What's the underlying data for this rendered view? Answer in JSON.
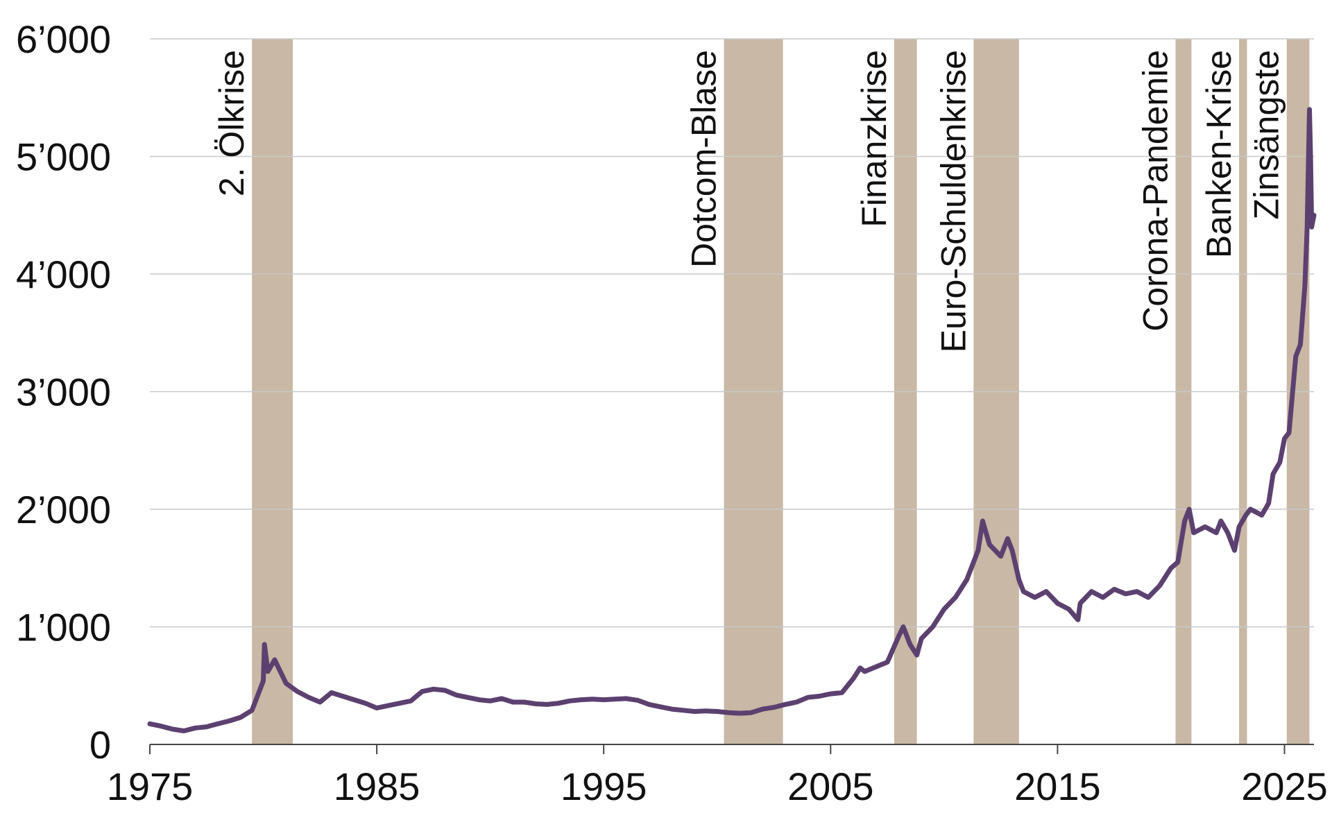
{
  "chart_data": {
    "type": "line",
    "title": "",
    "xlabel": "",
    "ylabel": "",
    "xlim": [
      1975,
      2026.3
    ],
    "ylim": [
      0,
      6000
    ],
    "grid": true,
    "y_ticks": [
      {
        "value": 0,
        "label": "0"
      },
      {
        "value": 1000,
        "label": "1’000"
      },
      {
        "value": 2000,
        "label": "2’000"
      },
      {
        "value": 3000,
        "label": "3’000"
      },
      {
        "value": 4000,
        "label": "4’000"
      },
      {
        "value": 5000,
        "label": "5’000"
      },
      {
        "value": 6000,
        "label": "6’000"
      }
    ],
    "x_ticks": [
      {
        "value": 1975,
        "label": "1975"
      },
      {
        "value": 1985,
        "label": "1985"
      },
      {
        "value": 1995,
        "label": "1995"
      },
      {
        "value": 2005,
        "label": "2005"
      },
      {
        "value": 2015,
        "label": "2015"
      },
      {
        "value": 2025,
        "label": "2025"
      }
    ],
    "colors": {
      "series": "#5c4170",
      "band": "#c8b8a5",
      "grid": "#c8c8c8",
      "axis": "#444444"
    },
    "crisis_bands": [
      {
        "label": "2. Ölkrise",
        "start": 1979.5,
        "end": 1981.3
      },
      {
        "label": "Dotcom-Blase",
        "start": 2000.3,
        "end": 2002.9
      },
      {
        "label": "Finanzkrise",
        "start": 2007.8,
        "end": 2008.8
      },
      {
        "label": "Euro-Schuldenkrise",
        "start": 2011.3,
        "end": 2013.3
      },
      {
        "label": "Corona-Pandemie",
        "start": 2020.2,
        "end": 2020.9
      },
      {
        "label": "Banken-Krise",
        "start": 2023.0,
        "end": 2023.35
      },
      {
        "label": "Zinsängste",
        "start": 2025.1,
        "end": 2026.1
      }
    ],
    "series": [
      {
        "x": [
          1975.0,
          1975.5,
          1976.0,
          1976.5,
          1977.0,
          1977.5,
          1978.0,
          1978.5,
          1979.0,
          1979.5,
          1980.0,
          1980.05,
          1980.2,
          1980.5,
          1980.7,
          1981.0,
          1981.5,
          1982.0,
          1982.5,
          1983.0,
          1983.5,
          1984.0,
          1984.5,
          1985.0,
          1985.5,
          1986.0,
          1986.5,
          1987.0,
          1987.5,
          1988.0,
          1988.5,
          1989.0,
          1989.5,
          1990.0,
          1990.5,
          1991.0,
          1991.5,
          1992.0,
          1992.5,
          1993.0,
          1993.5,
          1994.0,
          1994.5,
          1995.0,
          1995.5,
          1996.0,
          1996.5,
          1997.0,
          1997.5,
          1998.0,
          1998.5,
          1999.0,
          1999.5,
          2000.0,
          2000.5,
          2001.0,
          2001.5,
          2002.0,
          2002.5,
          2003.0,
          2003.5,
          2004.0,
          2004.5,
          2005.0,
          2005.5,
          2006.0,
          2006.3,
          2006.5,
          2007.0,
          2007.5,
          2008.0,
          2008.2,
          2008.5,
          2008.8,
          2009.0,
          2009.5,
          2010.0,
          2010.5,
          2011.0,
          2011.5,
          2011.7,
          2012.0,
          2012.5,
          2012.8,
          2013.0,
          2013.3,
          2013.5,
          2014.0,
          2014.5,
          2015.0,
          2015.5,
          2015.9,
          2016.0,
          2016.5,
          2017.0,
          2017.5,
          2018.0,
          2018.5,
          2019.0,
          2019.5,
          2020.0,
          2020.3,
          2020.6,
          2020.8,
          2021.0,
          2021.5,
          2022.0,
          2022.2,
          2022.5,
          2022.8,
          2023.0,
          2023.3,
          2023.5,
          2024.0,
          2024.3,
          2024.5,
          2024.8,
          2025.0,
          2025.2,
          2025.5,
          2025.7,
          2025.9,
          2026.0,
          2026.1,
          2026.15,
          2026.2,
          2026.3
        ],
        "y": [
          175,
          155,
          130,
          115,
          140,
          150,
          175,
          200,
          230,
          290,
          540,
          850,
          620,
          720,
          640,
          520,
          450,
          400,
          360,
          440,
          410,
          380,
          350,
          310,
          330,
          350,
          370,
          450,
          470,
          460,
          420,
          400,
          380,
          370,
          390,
          360,
          360,
          345,
          340,
          350,
          370,
          380,
          385,
          380,
          385,
          390,
          375,
          340,
          320,
          300,
          290,
          280,
          285,
          280,
          270,
          265,
          270,
          300,
          315,
          340,
          360,
          400,
          410,
          430,
          440,
          560,
          650,
          620,
          660,
          700,
          920,
          1000,
          850,
          760,
          900,
          1000,
          1150,
          1250,
          1400,
          1650,
          1900,
          1700,
          1600,
          1750,
          1650,
          1400,
          1300,
          1250,
          1300,
          1200,
          1150,
          1060,
          1200,
          1300,
          1250,
          1320,
          1280,
          1300,
          1250,
          1350,
          1500,
          1550,
          1900,
          2000,
          1800,
          1850,
          1800,
          1900,
          1800,
          1650,
          1850,
          1950,
          2000,
          1950,
          2050,
          2300,
          2400,
          2600,
          2650,
          3300,
          3400,
          3900,
          4400,
          5400,
          5000,
          4400,
          4500
        ]
      }
    ]
  }
}
